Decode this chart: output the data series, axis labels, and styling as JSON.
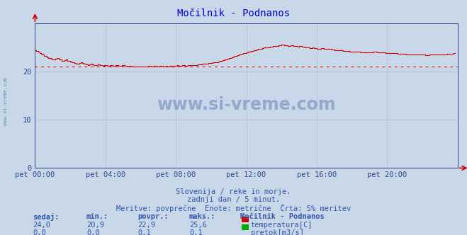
{
  "title": "Močilnik - Podnanos",
  "title_color": "#0000cc",
  "bg_color": "#c8d8e8",
  "plot_bg_color": "#c8d8e8",
  "grid_color": "#b0b8c8",
  "x_tick_labels": [
    "pet 00:00",
    "pet 04:00",
    "pet 08:00",
    "pet 12:00",
    "pet 16:00",
    "pet 20:00"
  ],
  "x_tick_positions": [
    0,
    48,
    96,
    144,
    192,
    240
  ],
  "ylim": [
    0,
    30
  ],
  "yticks": [
    0,
    10,
    20
  ],
  "xlim": [
    0,
    288
  ],
  "temp_color": "#cc0000",
  "pretok_color": "#00aa00",
  "avg_line_color": "#dd2222",
  "avg_value": 21.1,
  "watermark": "www.si-vreme.com",
  "watermark_color": "#1a3a8a",
  "watermark_alpha": 0.3,
  "footer_line1": "Slovenija / reke in morje.",
  "footer_line2": "zadnji dan / 5 minut.",
  "footer_line3": "Meritve: povprečne  Enote: metrične  Črta: 5% meritev",
  "footer_color": "#3355aa",
  "table_header_color": "#3355aa",
  "table_value_color": "#3355aa",
  "station_name": "Močilnik - Podnanos",
  "sedaj": 24.0,
  "min_val": 20.9,
  "povpr": 22.9,
  "maks": 25.6,
  "sedaj2": 0.0,
  "min2": 0.0,
  "povpr2": 0.1,
  "maks2": 0.1,
  "temp_data": [
    24.5,
    24.3,
    24.1,
    23.9,
    23.7,
    23.5,
    23.3,
    23.2,
    23.0,
    22.9,
    22.8,
    22.7,
    22.6,
    22.5,
    22.7,
    22.8,
    22.6,
    22.5,
    22.3,
    22.2,
    22.4,
    22.5,
    22.3,
    22.2,
    22.1,
    22.0,
    21.9,
    21.8,
    21.7,
    21.6,
    21.8,
    21.9,
    21.8,
    21.7,
    21.6,
    21.5,
    21.4,
    21.5,
    21.6,
    21.5,
    21.4,
    21.3,
    21.4,
    21.5,
    21.4,
    21.3,
    21.2,
    21.3,
    21.3,
    21.2,
    21.2,
    21.3,
    21.3,
    21.2,
    21.2,
    21.3,
    21.3,
    21.2,
    21.2,
    21.3,
    21.3,
    21.2,
    21.2,
    21.1,
    21.2,
    21.2,
    21.1,
    21.1,
    21.0,
    21.1,
    21.1,
    21.0,
    21.0,
    21.1,
    21.1,
    21.1,
    21.1,
    21.2,
    21.2,
    21.1,
    21.1,
    21.2,
    21.2,
    21.1,
    21.1,
    21.2,
    21.2,
    21.1,
    21.1,
    21.2,
    21.1,
    21.1,
    21.2,
    21.2,
    21.1,
    21.2,
    21.2,
    21.3,
    21.2,
    21.2,
    21.3,
    21.3,
    21.2,
    21.2,
    21.3,
    21.3,
    21.3,
    21.3,
    21.4,
    21.4,
    21.4,
    21.5,
    21.5,
    21.5,
    21.6,
    21.6,
    21.7,
    21.7,
    21.8,
    21.8,
    21.8,
    21.9,
    21.9,
    22.0,
    22.0,
    22.1,
    22.2,
    22.3,
    22.4,
    22.5,
    22.6,
    22.7,
    22.8,
    22.9,
    23.0,
    23.1,
    23.2,
    23.3,
    23.4,
    23.5,
    23.6,
    23.7,
    23.8,
    23.9,
    24.0,
    24.1,
    24.2,
    24.3,
    24.3,
    24.4,
    24.5,
    24.6,
    24.7,
    24.8,
    24.8,
    24.9,
    25.0,
    25.0,
    25.1,
    25.1,
    25.2,
    25.2,
    25.3,
    25.3,
    25.4,
    25.4,
    25.5,
    25.5,
    25.6,
    25.6,
    25.5,
    25.5,
    25.4,
    25.4,
    25.5,
    25.5,
    25.4,
    25.3,
    25.3,
    25.2,
    25.3,
    25.3,
    25.2,
    25.2,
    25.1,
    25.0,
    25.0,
    24.9,
    24.9,
    25.0,
    24.9,
    24.9,
    24.8,
    24.8,
    24.8,
    24.9,
    24.9,
    24.8,
    24.7,
    24.7,
    24.7,
    24.7,
    24.6,
    24.6,
    24.5,
    24.5,
    24.4,
    24.4,
    24.4,
    24.4,
    24.3,
    24.3,
    24.3,
    24.3,
    24.2,
    24.2,
    24.2,
    24.2,
    24.1,
    24.1,
    24.1,
    24.1,
    24.0,
    24.0,
    24.0,
    24.0,
    24.0,
    24.0,
    24.0,
    24.0,
    24.1,
    24.1,
    24.1,
    24.0,
    24.0,
    24.0,
    24.0,
    24.0,
    24.0,
    23.9,
    23.9,
    23.9,
    23.9,
    23.8,
    23.8,
    23.8,
    23.8,
    23.7,
    23.7,
    23.7,
    23.7,
    23.7,
    23.7,
    23.6,
    23.6,
    23.6,
    23.6,
    23.6,
    23.6,
    23.5,
    23.5,
    23.5,
    23.5,
    23.5,
    23.5,
    23.5,
    23.4,
    23.4,
    23.4,
    23.5,
    23.5,
    23.5,
    23.5,
    23.5,
    23.5,
    23.5,
    23.6,
    23.6,
    23.6,
    23.6,
    23.6,
    23.7,
    23.7,
    23.7,
    23.7,
    23.8,
    23.8
  ]
}
